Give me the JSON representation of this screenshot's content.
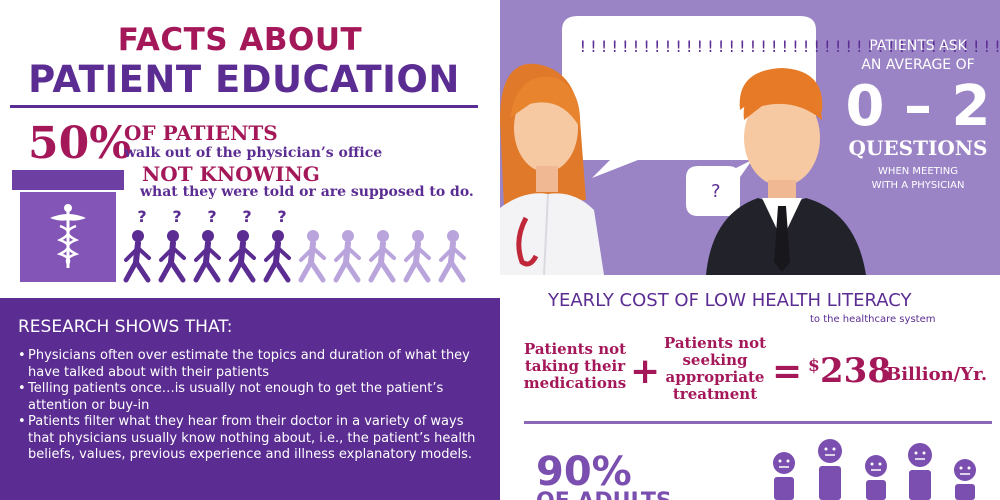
{
  "header": {
    "line1": "FACTS ABOUT",
    "line2": "PATIENT EDUCATION"
  },
  "stat50": {
    "percent": "50%",
    "of_patients": "OF PATIENTS",
    "walk_out": "walk out of the physician’s office",
    "not_knowing": "NOT KNOWING",
    "told": "what they were told or are supposed to do.",
    "question_marks": [
      "?",
      "?",
      "?",
      "?",
      "?"
    ],
    "people_total": 10,
    "people_highlighted": 5
  },
  "illustration": {
    "bubble_text": "!!!!!!!!!!!!!!!!!!!!!!!!!!!!!!!!!!!!!!!!!!!!!!!!!!!!!!!!!!!!!!!!!!!!!!!!!!!!!!!!!!!!!!!!!!!!!!!!!!",
    "small_bubble_text": "?"
  },
  "questions_stat": {
    "patients_ask": "PATIENTS ASK",
    "an_average_of": "AN AVERAGE OF",
    "range": "0 – 2",
    "questions": "QUESTIONS",
    "when_meeting": "WHEN MEETING",
    "with_physician": "WITH A PHYSICIAN"
  },
  "research": {
    "heading": "RESEARCH SHOWS THAT:",
    "bullets": [
      "Physicians often over estimate the topics and duration of what they have talked about with their patients",
      "Telling patients once…is usually not enough to get the patient’s attention or buy-in",
      "Patients filter what they hear from their doctor in a variety of ways that physicians usually know nothing about, i.e., the patient’s health beliefs, values, previous experience and illness explanatory models."
    ]
  },
  "cost": {
    "heading": "YEARLY COST OF LOW HEALTH LITERACY",
    "subheading": "to the healthcare system",
    "term1": "Patients not taking their medications",
    "plus": "+",
    "term2": "Patients not seeking appropriate treatment",
    "equals": "=",
    "currency": "$",
    "amount": "238",
    "unit": "Billion/Yr."
  },
  "adults": {
    "percent": "90%",
    "label": "OF ADULTS"
  },
  "colors": {
    "magenta": "#a4185a",
    "purple_dark": "#5b2c92",
    "purple_mid": "#6e3fa3",
    "purple_light": "#b9a4dc",
    "lavender_bg": "#9a84c6"
  }
}
